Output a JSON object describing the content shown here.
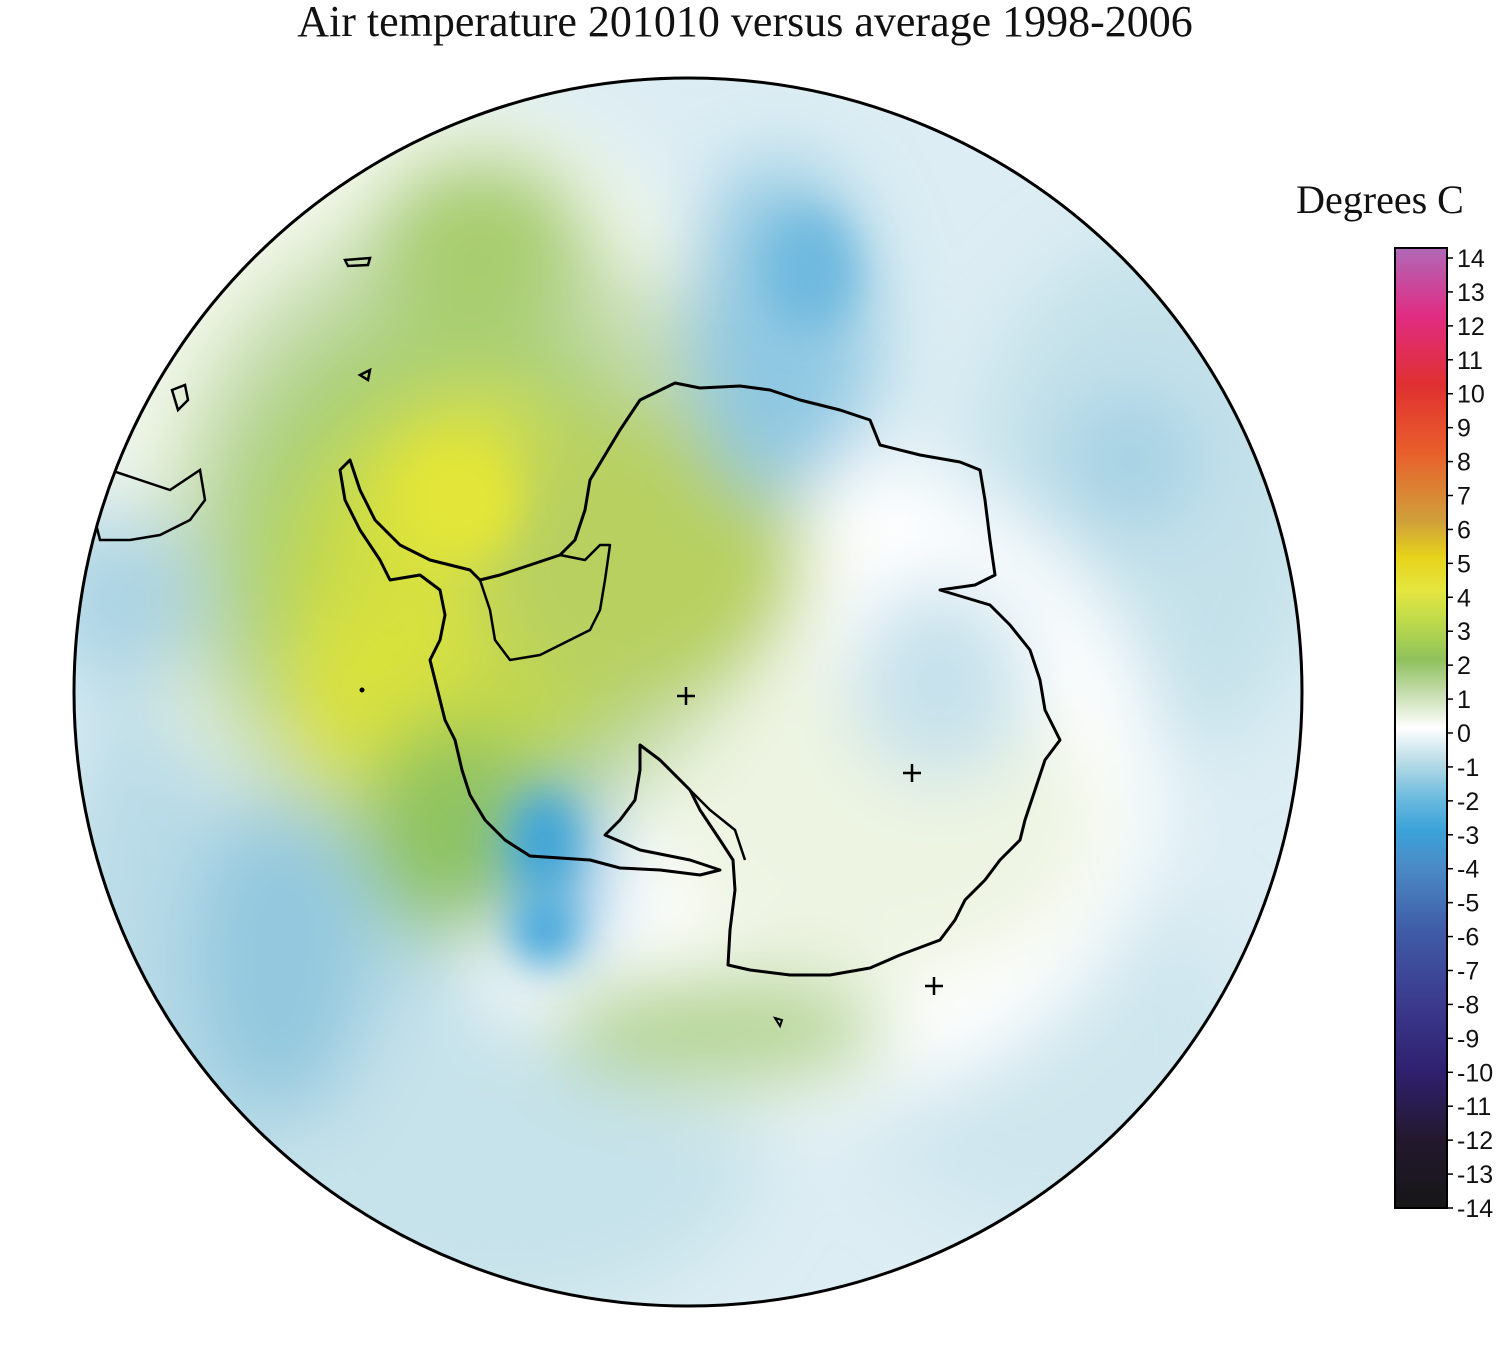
{
  "title": "Air temperature 201010 versus average 1998-2006",
  "colorbar": {
    "units_label": "Degrees C",
    "ticks": [
      "14",
      "13",
      "12",
      "11",
      "10",
      "9",
      "8",
      "7",
      "6",
      "5",
      "4",
      "3",
      "2",
      "1",
      "0",
      "-1",
      "-2",
      "-3",
      "-4",
      "-5",
      "-6",
      "-7",
      "-8",
      "-9",
      "-10",
      "-11",
      "-12",
      "-13",
      "-14"
    ],
    "min": -14,
    "max": 14,
    "colors": {
      "14": "#b068b8",
      "12": "#e02c82",
      "10": "#e03030",
      "8": "#e9602c",
      "6": "#cfa13a",
      "5": "#e6d21a",
      "4": "#e5e640",
      "3": "#b8d84c",
      "2": "#8ec15c",
      "1": "#c7ddb0",
      "0": "#ffffff",
      "-1": "#b7dbe6",
      "-2": "#6fbcdf",
      "-3": "#3aa2d9",
      "-4": "#4b8cc7",
      "-6": "#3f5aa6",
      "-8": "#3c3b8e",
      "-10": "#2f206f",
      "-12": "#23182e",
      "-14": "#161616"
    }
  },
  "markers": [
    "plus",
    "plus",
    "plus"
  ]
}
